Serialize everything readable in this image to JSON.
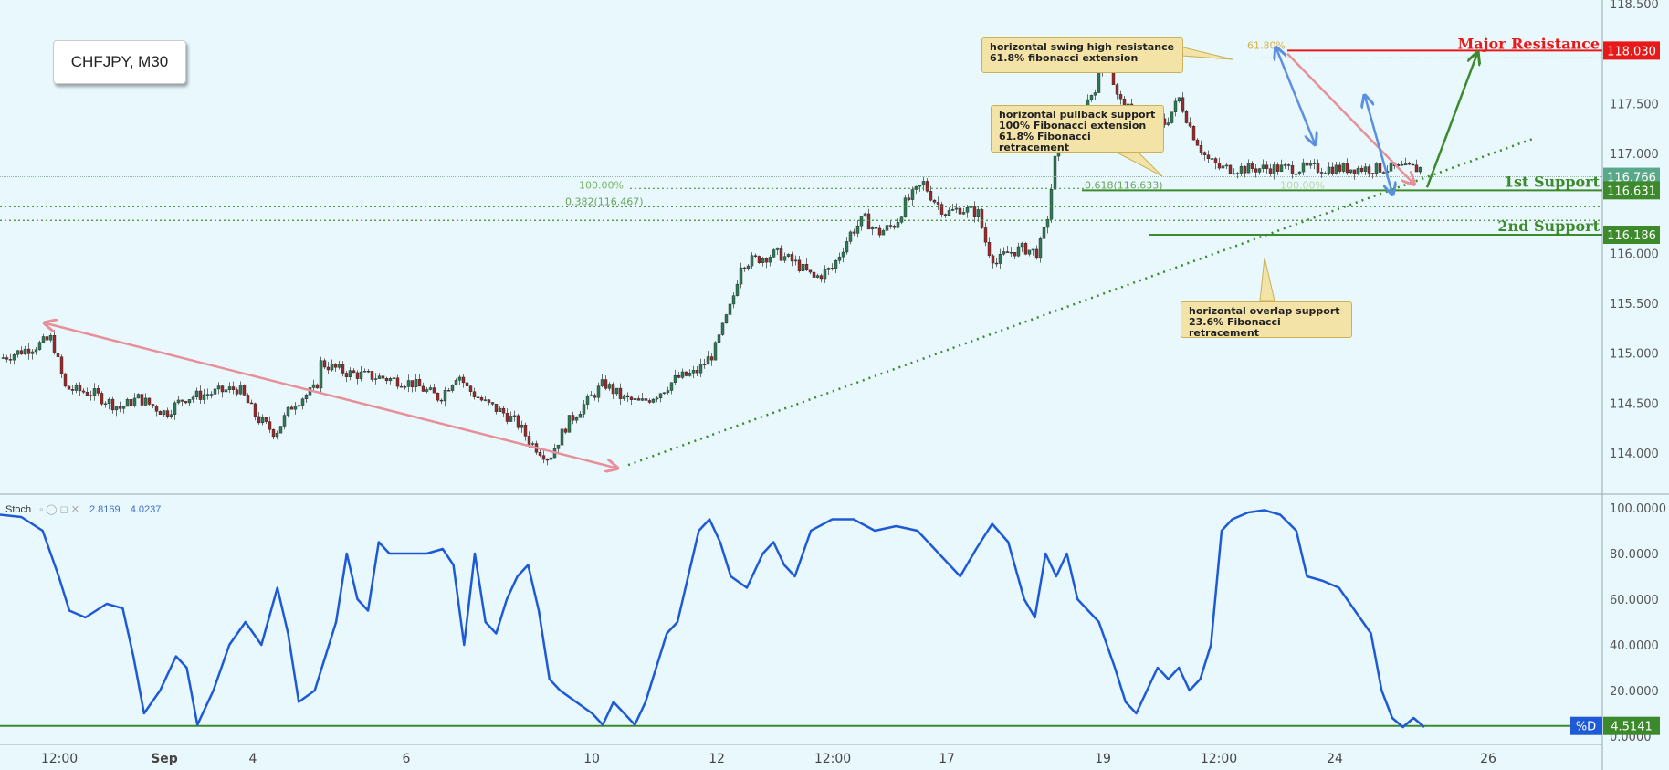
{
  "toolbar": {
    "icons": [
      "minimize-icon",
      "collapse-icon"
    ],
    "minimize_glyph": "⊟",
    "collapse_glyph": "«"
  },
  "symbol_label": "CHFJPY, M30",
  "colors": {
    "background": "#e8f8fc",
    "bull": "#2f7a55",
    "bear": "#9a2a2a",
    "pink": "#e8909a",
    "blue_arrow": "#5b8fe0",
    "green_line": "#3d8a2c",
    "resistance": "#e81919",
    "stoch": "#1e5ad6"
  },
  "callouts": {
    "swing_high": [
      "horizontal swing high resistance",
      "61.8% fibonacci extension"
    ],
    "pullback": [
      "horizontal pullback support",
      "100% Fibonacci extension",
      "61.8% Fibonacci retracement"
    ],
    "overlap": [
      "horizontal overlap support",
      "23.6% Fibonacci retracement"
    ]
  },
  "chart_data": [
    {
      "type": "candlestick",
      "title": "CHFJPY, M30",
      "ylim": [
        113.7,
        118.55
      ],
      "y_ticks": [
        "118.500",
        "117.500",
        "117.000",
        "116.000",
        "115.500",
        "115.000",
        "114.500",
        "114.000"
      ],
      "x_ticks": [
        "12:00",
        "Sep",
        "4",
        "6",
        "10",
        "12",
        "12:00",
        "17",
        "19",
        "12:00",
        "24",
        "26"
      ],
      "close_path": [
        [
          0,
          114.95
        ],
        [
          40,
          115.08
        ],
        [
          55,
          115.15
        ],
        [
          70,
          114.65
        ],
        [
          100,
          114.6
        ],
        [
          130,
          114.45
        ],
        [
          150,
          114.55
        ],
        [
          180,
          114.4
        ],
        [
          200,
          114.55
        ],
        [
          230,
          114.6
        ],
        [
          260,
          114.65
        ],
        [
          280,
          114.35
        ],
        [
          300,
          114.2
        ],
        [
          320,
          114.5
        ],
        [
          345,
          114.65
        ],
        [
          350,
          114.9
        ],
        [
          380,
          114.8
        ],
        [
          420,
          114.75
        ],
        [
          450,
          114.7
        ],
        [
          480,
          114.55
        ],
        [
          500,
          114.8
        ],
        [
          510,
          114.65
        ],
        [
          530,
          114.5
        ],
        [
          550,
          114.4
        ],
        [
          565,
          114.3
        ],
        [
          580,
          114.1
        ],
        [
          600,
          113.95
        ],
        [
          620,
          114.3
        ],
        [
          640,
          114.5
        ],
        [
          660,
          114.7
        ],
        [
          680,
          114.55
        ],
        [
          700,
          114.5
        ],
        [
          720,
          114.6
        ],
        [
          740,
          114.75
        ],
        [
          760,
          114.8
        ],
        [
          780,
          115.0
        ],
        [
          800,
          115.5
        ],
        [
          810,
          115.9
        ],
        [
          830,
          115.95
        ],
        [
          850,
          116.0
        ],
        [
          870,
          115.9
        ],
        [
          890,
          115.75
        ],
        [
          910,
          115.85
        ],
        [
          930,
          116.2
        ],
        [
          945,
          116.35
        ],
        [
          960,
          116.2
        ],
        [
          980,
          116.3
        ],
        [
          990,
          116.5
        ],
        [
          1010,
          116.7
        ],
        [
          1020,
          116.55
        ],
        [
          1035,
          116.4
        ],
        [
          1050,
          116.45
        ],
        [
          1070,
          116.4
        ],
        [
          1080,
          116.05
        ],
        [
          1090,
          115.9
        ],
        [
          1100,
          116.0
        ],
        [
          1120,
          116.05
        ],
        [
          1135,
          116.0
        ],
        [
          1145,
          116.3
        ],
        [
          1155,
          117.0
        ],
        [
          1170,
          117.2
        ],
        [
          1185,
          117.45
        ],
        [
          1200,
          117.7
        ],
        [
          1212,
          118.05
        ],
        [
          1220,
          117.6
        ],
        [
          1230,
          117.45
        ],
        [
          1260,
          117.35
        ],
        [
          1275,
          117.3
        ],
        [
          1290,
          117.55
        ],
        [
          1305,
          117.2
        ],
        [
          1320,
          116.95
        ],
        [
          1335,
          116.85
        ]
      ],
      "levels": [
        {
          "name": "Major Resistance",
          "value": 118.03,
          "label": "118.030",
          "color": "#e81919"
        },
        {
          "name": "current",
          "value": 116.766,
          "label": "116.766",
          "color": "#5aa88a"
        },
        {
          "name": "1st Support",
          "value": 116.631,
          "label": "116.631",
          "color": "#3d8a2c"
        },
        {
          "name": "2nd Support",
          "value": 116.186,
          "label": "116.186",
          "color": "#3d8a2c"
        }
      ],
      "fib_labels": {
        "ext_100": "100.00%",
        "retr_382": "0.382(116.467)",
        "retr_618": "0.618(116.633)",
        "ext_100_right": "100.00%",
        "ext_618": "61.80%"
      },
      "fib_levels": [
        116.63,
        116.467,
        116.33
      ],
      "annotations": [
        "Major Resistance",
        "1st Support",
        "2nd Support"
      ]
    },
    {
      "type": "line",
      "title": "Stoch",
      "series": [
        {
          "name": "%D",
          "last": 4.5141
        }
      ],
      "ylim": [
        0,
        100
      ],
      "y_ticks": [
        "100.0000",
        "80.0000",
        "60.0000",
        "40.0000",
        "20.0000",
        "0.0000"
      ],
      "header_values": [
        "2.8169",
        "4.0237"
      ],
      "level_label": "4.5141",
      "series_tag": "%D",
      "path": [
        [
          0,
          97
        ],
        [
          20,
          96
        ],
        [
          40,
          90
        ],
        [
          55,
          70
        ],
        [
          65,
          55
        ],
        [
          80,
          52
        ],
        [
          100,
          58
        ],
        [
          115,
          56
        ],
        [
          125,
          35
        ],
        [
          135,
          10
        ],
        [
          150,
          20
        ],
        [
          165,
          35
        ],
        [
          175,
          30
        ],
        [
          185,
          5
        ],
        [
          200,
          20
        ],
        [
          215,
          40
        ],
        [
          230,
          50
        ],
        [
          245,
          40
        ],
        [
          260,
          65
        ],
        [
          270,
          45
        ],
        [
          280,
          15
        ],
        [
          295,
          20
        ],
        [
          305,
          35
        ],
        [
          315,
          50
        ],
        [
          325,
          80
        ],
        [
          335,
          60
        ],
        [
          345,
          55
        ],
        [
          355,
          85
        ],
        [
          365,
          80
        ],
        [
          380,
          80
        ],
        [
          400,
          80
        ],
        [
          415,
          82
        ],
        [
          425,
          75
        ],
        [
          435,
          40
        ],
        [
          445,
          80
        ],
        [
          455,
          50
        ],
        [
          465,
          45
        ],
        [
          475,
          60
        ],
        [
          485,
          70
        ],
        [
          495,
          75
        ],
        [
          505,
          55
        ],
        [
          515,
          25
        ],
        [
          525,
          20
        ],
        [
          540,
          15
        ],
        [
          555,
          10
        ],
        [
          565,
          5
        ],
        [
          575,
          15
        ],
        [
          585,
          10
        ],
        [
          595,
          5
        ],
        [
          605,
          15
        ],
        [
          615,
          30
        ],
        [
          625,
          45
        ],
        [
          635,
          50
        ],
        [
          645,
          70
        ],
        [
          655,
          90
        ],
        [
          665,
          95
        ],
        [
          675,
          85
        ],
        [
          685,
          70
        ],
        [
          700,
          65
        ],
        [
          715,
          80
        ],
        [
          725,
          85
        ],
        [
          735,
          75
        ],
        [
          745,
          70
        ],
        [
          760,
          90
        ],
        [
          780,
          95
        ],
        [
          800,
          95
        ],
        [
          820,
          90
        ],
        [
          840,
          92
        ],
        [
          860,
          90
        ],
        [
          880,
          80
        ],
        [
          900,
          70
        ],
        [
          915,
          82
        ],
        [
          930,
          93
        ],
        [
          945,
          85
        ],
        [
          960,
          60
        ],
        [
          970,
          52
        ],
        [
          980,
          80
        ],
        [
          990,
          70
        ],
        [
          1000,
          80
        ],
        [
          1010,
          60
        ],
        [
          1020,
          55
        ],
        [
          1030,
          50
        ],
        [
          1045,
          30
        ],
        [
          1055,
          15
        ],
        [
          1065,
          10
        ],
        [
          1075,
          20
        ],
        [
          1085,
          30
        ],
        [
          1095,
          25
        ],
        [
          1105,
          30
        ],
        [
          1115,
          20
        ],
        [
          1125,
          25
        ],
        [
          1135,
          40
        ],
        [
          1145,
          90
        ],
        [
          1155,
          95
        ],
        [
          1170,
          98
        ],
        [
          1185,
          99
        ],
        [
          1200,
          97
        ],
        [
          1215,
          90
        ],
        [
          1225,
          70
        ],
        [
          1240,
          68
        ],
        [
          1255,
          65
        ],
        [
          1270,
          55
        ],
        [
          1285,
          45
        ],
        [
          1295,
          20
        ],
        [
          1305,
          8
        ],
        [
          1315,
          4
        ],
        [
          1325,
          8
        ],
        [
          1335,
          4
        ]
      ]
    }
  ],
  "markers": {
    "arrows": [
      "down-slope-arrow",
      "drop-arrows",
      "recovery-arrow"
    ]
  }
}
